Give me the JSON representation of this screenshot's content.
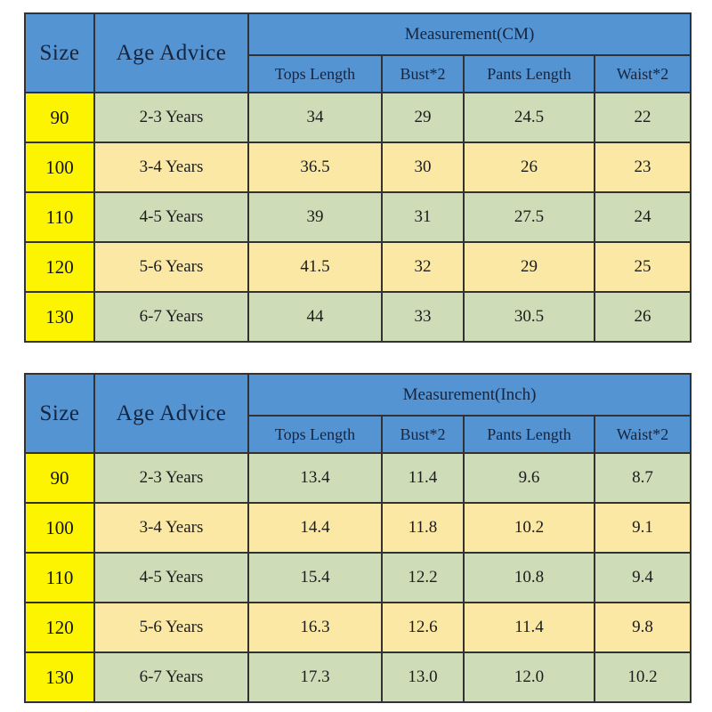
{
  "colors": {
    "header_blue": "#5494d3",
    "size_yellow": "#fdf402",
    "row_green": "#cedcb8",
    "row_tan": "#fae8a4",
    "border": "#323232",
    "header_text": "#16243e",
    "cell_text": "#1c1c1c",
    "page_background": "#ffffff"
  },
  "chart_data": [
    {
      "type": "table",
      "title": "Measurement(CM)",
      "header": {
        "size": "Size",
        "age_advice": "Age Advice",
        "measurement": "Measurement(CM)",
        "sub_columns": [
          "Tops Length",
          "Bust*2",
          "Pants Length",
          "Waist*2"
        ]
      },
      "columns": [
        "Size",
        "Age Advice",
        "Tops Length",
        "Bust*2",
        "Pants Length",
        "Waist*2"
      ],
      "rows": [
        {
          "size": "90",
          "age": "2-3 Years",
          "values": [
            "34",
            "29",
            "24.5",
            "22"
          ]
        },
        {
          "size": "100",
          "age": "3-4 Years",
          "values": [
            "36.5",
            "30",
            "26",
            "23"
          ]
        },
        {
          "size": "110",
          "age": "4-5 Years",
          "values": [
            "39",
            "31",
            "27.5",
            "24"
          ]
        },
        {
          "size": "120",
          "age": "5-6 Years",
          "values": [
            "41.5",
            "32",
            "29",
            "25"
          ]
        },
        {
          "size": "130",
          "age": "6-7 Years",
          "values": [
            "44",
            "33",
            "30.5",
            "26"
          ]
        }
      ]
    },
    {
      "type": "table",
      "title": "Measurement(Inch)",
      "header": {
        "size": "Size",
        "age_advice": "Age Advice",
        "measurement": "Measurement(Inch)",
        "sub_columns": [
          "Tops Length",
          "Bust*2",
          "Pants Length",
          "Waist*2"
        ]
      },
      "columns": [
        "Size",
        "Age Advice",
        "Tops Length",
        "Bust*2",
        "Pants Length",
        "Waist*2"
      ],
      "rows": [
        {
          "size": "90",
          "age": "2-3 Years",
          "values": [
            "13.4",
            "11.4",
            "9.6",
            "8.7"
          ]
        },
        {
          "size": "100",
          "age": "3-4 Years",
          "values": [
            "14.4",
            "11.8",
            "10.2",
            "9.1"
          ]
        },
        {
          "size": "110",
          "age": "4-5 Years",
          "values": [
            "15.4",
            "12.2",
            "10.8",
            "9.4"
          ]
        },
        {
          "size": "120",
          "age": "5-6 Years",
          "values": [
            "16.3",
            "12.6",
            "11.4",
            "9.8"
          ]
        },
        {
          "size": "130",
          "age": "6-7 Years",
          "values": [
            "17.3",
            "13.0",
            "12.0",
            "10.2"
          ]
        }
      ]
    }
  ]
}
